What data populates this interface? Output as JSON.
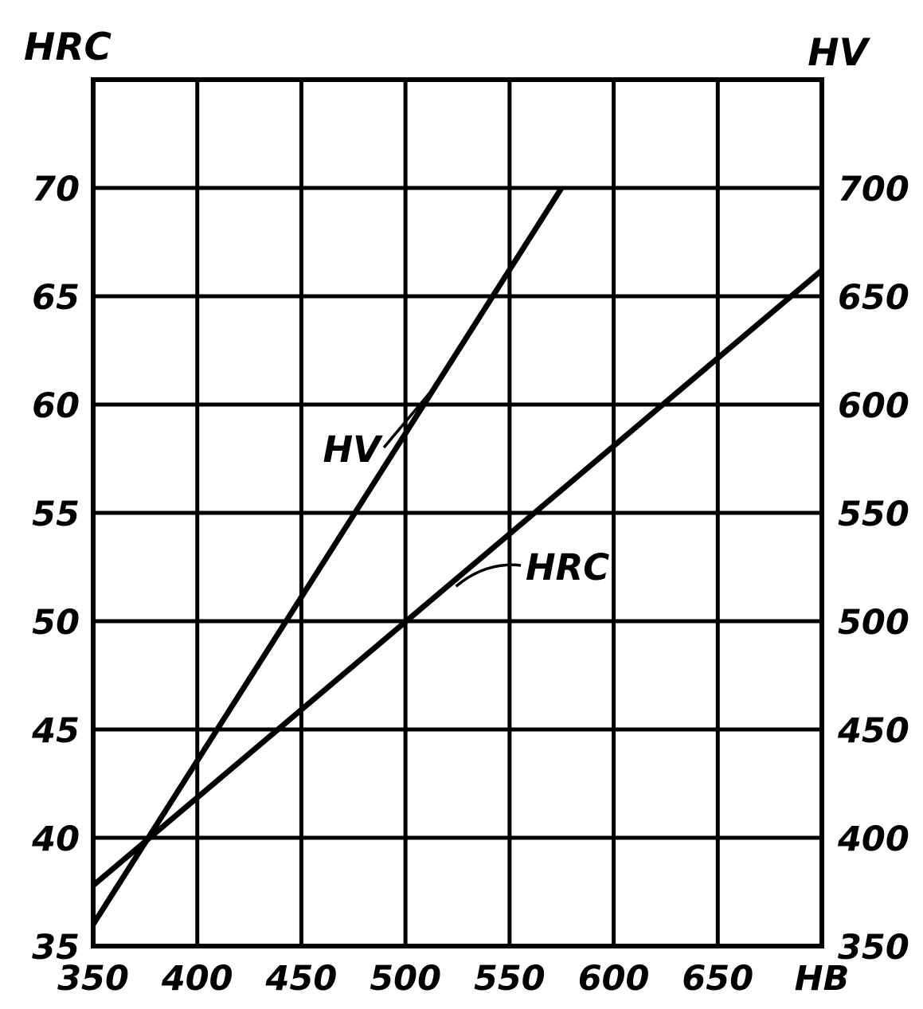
{
  "chart_data": {
    "type": "line",
    "x": {
      "label": "HB",
      "ticks": [
        350,
        400,
        450,
        500,
        550,
        600,
        650
      ],
      "range": [
        350,
        700
      ]
    },
    "y_left": {
      "label": "HRC",
      "ticks": [
        35,
        40,
        45,
        50,
        55,
        60,
        65,
        70
      ],
      "range": [
        35,
        75
      ]
    },
    "y_right": {
      "label": "HV",
      "ticks": [
        350,
        400,
        450,
        500,
        550,
        600,
        650,
        700
      ],
      "range": [
        350,
        750
      ]
    },
    "grid": true,
    "series": [
      {
        "name": "HV",
        "axis": "right",
        "x": [
          350,
          575
        ],
        "y": [
          360,
          700
        ]
      },
      {
        "name": "HRC",
        "axis": "left",
        "x": [
          350,
          700
        ],
        "y": [
          37.8,
          66.2
        ]
      }
    ]
  }
}
